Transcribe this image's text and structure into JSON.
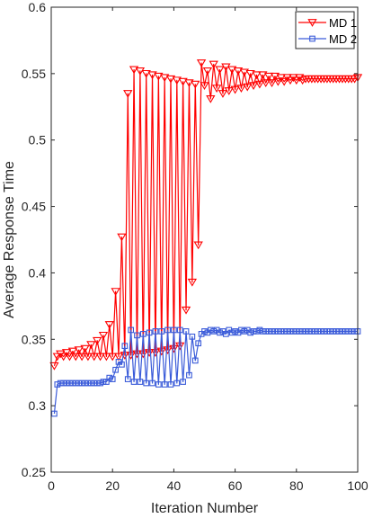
{
  "chart_data": {
    "type": "line",
    "title": "",
    "xlabel": "Iteration Number",
    "ylabel": "Average Response Time",
    "xlim": [
      0,
      100
    ],
    "ylim": [
      0.25,
      0.6
    ],
    "xticks": [
      0,
      20,
      40,
      60,
      80,
      100
    ],
    "yticks": [
      0.25,
      0.3,
      0.35,
      0.4,
      0.45,
      0.5,
      0.55,
      0.6
    ],
    "xtick_labels": [
      "0",
      "20",
      "40",
      "60",
      "80",
      "100"
    ],
    "ytick_labels": [
      "0.25",
      "0.3",
      "0.35",
      "0.4",
      "0.45",
      "0.5",
      "0.55",
      "0.6"
    ],
    "legend_position": "top-right",
    "grid": false,
    "x": [
      1,
      2,
      3,
      4,
      5,
      6,
      7,
      8,
      9,
      10,
      11,
      12,
      13,
      14,
      15,
      16,
      17,
      18,
      19,
      20,
      21,
      22,
      23,
      24,
      25,
      26,
      27,
      28,
      29,
      30,
      31,
      32,
      33,
      34,
      35,
      36,
      37,
      38,
      39,
      40,
      41,
      42,
      43,
      44,
      45,
      46,
      47,
      48,
      49,
      50,
      51,
      52,
      53,
      54,
      55,
      56,
      57,
      58,
      59,
      60,
      61,
      62,
      63,
      64,
      65,
      66,
      67,
      68,
      69,
      70,
      71,
      72,
      73,
      74,
      75,
      76,
      77,
      78,
      79,
      80,
      81,
      82,
      83,
      84,
      85,
      86,
      87,
      88,
      89,
      90,
      91,
      92,
      93,
      94,
      95,
      96,
      97,
      98,
      99,
      100
    ],
    "series": [
      {
        "name": "MD 1",
        "color": "#ff0000",
        "marker": "triangle-down",
        "values": [
          0.33,
          0.337,
          0.339,
          0.337,
          0.34,
          0.337,
          0.341,
          0.337,
          0.342,
          0.337,
          0.343,
          0.337,
          0.346,
          0.337,
          0.349,
          0.337,
          0.353,
          0.337,
          0.361,
          0.337,
          0.386,
          0.337,
          0.427,
          0.338,
          0.535,
          0.338,
          0.553,
          0.339,
          0.552,
          0.339,
          0.55,
          0.34,
          0.549,
          0.34,
          0.548,
          0.341,
          0.547,
          0.342,
          0.546,
          0.343,
          0.545,
          0.345,
          0.544,
          0.372,
          0.543,
          0.393,
          0.542,
          0.421,
          0.558,
          0.541,
          0.552,
          0.531,
          0.557,
          0.539,
          0.553,
          0.535,
          0.555,
          0.537,
          0.553,
          0.538,
          0.552,
          0.539,
          0.551,
          0.54,
          0.55,
          0.541,
          0.549,
          0.542,
          0.549,
          0.543,
          0.548,
          0.543,
          0.548,
          0.544,
          0.547,
          0.544,
          0.547,
          0.545,
          0.547,
          0.545,
          0.547,
          0.545,
          0.546,
          0.546,
          0.546,
          0.546,
          0.546,
          0.546,
          0.546,
          0.546,
          0.546,
          0.546,
          0.546,
          0.546,
          0.546,
          0.546,
          0.546,
          0.546,
          0.546,
          0.547
        ]
      },
      {
        "name": "MD 2",
        "color": "#3a5bd9",
        "marker": "square",
        "values": [
          0.294,
          0.316,
          0.317,
          0.317,
          0.317,
          0.317,
          0.317,
          0.317,
          0.317,
          0.317,
          0.317,
          0.317,
          0.317,
          0.317,
          0.317,
          0.317,
          0.318,
          0.318,
          0.321,
          0.32,
          0.327,
          0.333,
          0.331,
          0.345,
          0.32,
          0.357,
          0.318,
          0.353,
          0.318,
          0.354,
          0.317,
          0.355,
          0.317,
          0.356,
          0.316,
          0.356,
          0.316,
          0.357,
          0.316,
          0.357,
          0.317,
          0.357,
          0.318,
          0.356,
          0.323,
          0.352,
          0.334,
          0.347,
          0.354,
          0.356,
          0.355,
          0.357,
          0.356,
          0.357,
          0.355,
          0.356,
          0.354,
          0.357,
          0.355,
          0.356,
          0.355,
          0.357,
          0.356,
          0.357,
          0.355,
          0.356,
          0.356,
          0.357,
          0.356,
          0.356,
          0.356,
          0.356,
          0.356,
          0.356,
          0.356,
          0.356,
          0.356,
          0.356,
          0.356,
          0.356,
          0.356,
          0.356,
          0.356,
          0.356,
          0.356,
          0.356,
          0.356,
          0.356,
          0.356,
          0.356,
          0.356,
          0.356,
          0.356,
          0.356,
          0.356,
          0.356,
          0.356,
          0.356,
          0.356,
          0.356
        ]
      }
    ]
  }
}
